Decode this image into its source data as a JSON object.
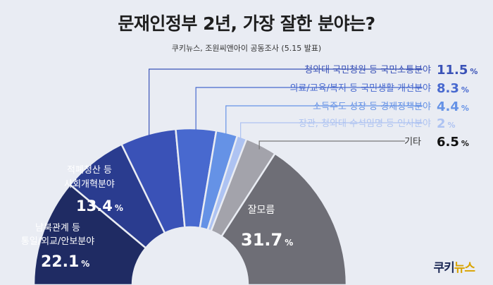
{
  "header": {
    "title": "문재인정부 2년, 가장 잘한 분야는?",
    "subtitle": "쿠키뉴스, 조원씨앤아이 공동조사 (5.15 발표)"
  },
  "logo": {
    "part1": "쿠키",
    "part2": "뉴스"
  },
  "chart_data": {
    "type": "pie",
    "variant": "semi-donut",
    "unit": "%",
    "slices": [
      {
        "label": "남북관계 등 통일/외교/안보분야",
        "value": 22.1,
        "color": "#1f2b63"
      },
      {
        "label": "적폐청산 등 사회개혁분야",
        "value": 13.4,
        "color": "#2a3c8f"
      },
      {
        "label": "청와대 국민청원 등 국민소통분야",
        "value": 11.5,
        "color": "#3a52b7"
      },
      {
        "label": "의료/교육/복지 등 국민생활 개선분야",
        "value": 8.3,
        "color": "#4869cf"
      },
      {
        "label": "소득주도 성장 등 경제정책분야",
        "value": 4.4,
        "color": "#6592e6"
      },
      {
        "label": "장관, 청와대 수석임명 등 인사분야",
        "value": 2.0,
        "color": "#aec3f2"
      },
      {
        "label": "기타",
        "value": 6.5,
        "color": "#a3a3ab"
      },
      {
        "label": "잘모름",
        "value": 31.7,
        "color": "#6e6e76"
      }
    ]
  }
}
